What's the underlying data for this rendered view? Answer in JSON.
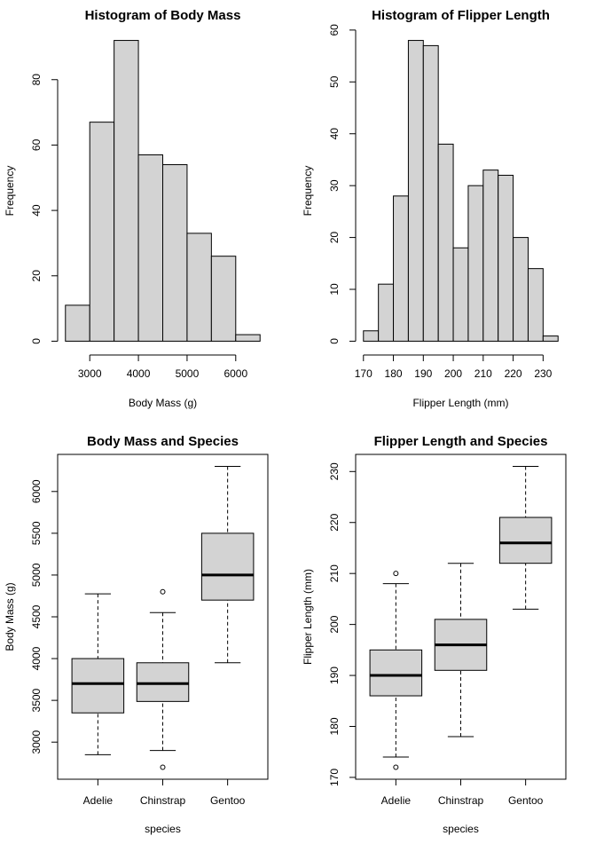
{
  "chart_data": [
    {
      "type": "histogram",
      "title": "Histogram of Body Mass",
      "xlabel": "Body Mass (g)",
      "ylabel": "Frequency",
      "bins": [
        2500,
        3000,
        3500,
        4000,
        4500,
        5000,
        5500,
        6000,
        6500
      ],
      "values": [
        11,
        67,
        92,
        57,
        54,
        33,
        26,
        2
      ],
      "color": "#d3d3d3",
      "xlim": [
        2340,
        6660
      ],
      "xticks": [
        3000,
        4000,
        5000,
        6000
      ],
      "ylim": [
        -3.68,
        95.68
      ],
      "yticks": [
        0,
        20,
        40,
        60,
        80
      ]
    },
    {
      "type": "histogram",
      "title": "Histogram of Flipper Length",
      "xlabel": "Flipper Length (mm)",
      "ylabel": "Frequency",
      "bins": [
        170,
        175,
        180,
        185,
        190,
        195,
        200,
        205,
        210,
        215,
        220,
        225,
        230,
        235
      ],
      "values": [
        2,
        11,
        28,
        58,
        57,
        38,
        18,
        30,
        33,
        32,
        20,
        14,
        1
      ],
      "color": "#d3d3d3",
      "xlim": [
        167.4,
        237.6
      ],
      "xticks": [
        170,
        180,
        190,
        200,
        210,
        220,
        230
      ],
      "ylim": [
        -2.32,
        60.32
      ],
      "yticks": [
        0,
        10,
        20,
        30,
        40,
        50,
        60
      ]
    },
    {
      "type": "boxplot",
      "title": "Body Mass and Species",
      "xlabel": "species",
      "ylabel": "Body Mass (g)",
      "categories": [
        "Adelie",
        "Chinstrap",
        "Gentoo"
      ],
      "color": "#d3d3d3",
      "boxes": [
        {
          "whisker_low": 2850,
          "q1": 3350,
          "median": 3700,
          "q3": 4000,
          "whisker_high": 4775
        },
        {
          "whisker_low": 2900,
          "q1": 3487,
          "median": 3700,
          "q3": 3950,
          "whisker_high": 4550,
          "outliers": [
            4800,
            2700
          ]
        },
        {
          "whisker_low": 3950,
          "q1": 4700,
          "median": 5000,
          "q3": 5500,
          "whisker_high": 6300
        }
      ],
      "ylim": [
        2556,
        6444
      ],
      "yticks": [
        3000,
        3500,
        4000,
        4500,
        5000,
        5500,
        6000
      ]
    },
    {
      "type": "boxplot",
      "title": "Flipper Length and Species",
      "xlabel": "species",
      "ylabel": "Flipper Length (mm)",
      "categories": [
        "Adelie",
        "Chinstrap",
        "Gentoo"
      ],
      "color": "#d3d3d3",
      "boxes": [
        {
          "whisker_low": 174,
          "q1": 186,
          "median": 190,
          "q3": 195,
          "whisker_high": 208,
          "outliers": [
            210,
            172
          ]
        },
        {
          "whisker_low": 178,
          "q1": 191,
          "median": 196,
          "q3": 201,
          "whisker_high": 212
        },
        {
          "whisker_low": 203,
          "q1": 212,
          "median": 216,
          "q3": 221,
          "whisker_high": 231
        }
      ],
      "ylim": [
        169.64,
        233.36
      ],
      "yticks": [
        170,
        180,
        190,
        200,
        210,
        220,
        230
      ]
    }
  ]
}
